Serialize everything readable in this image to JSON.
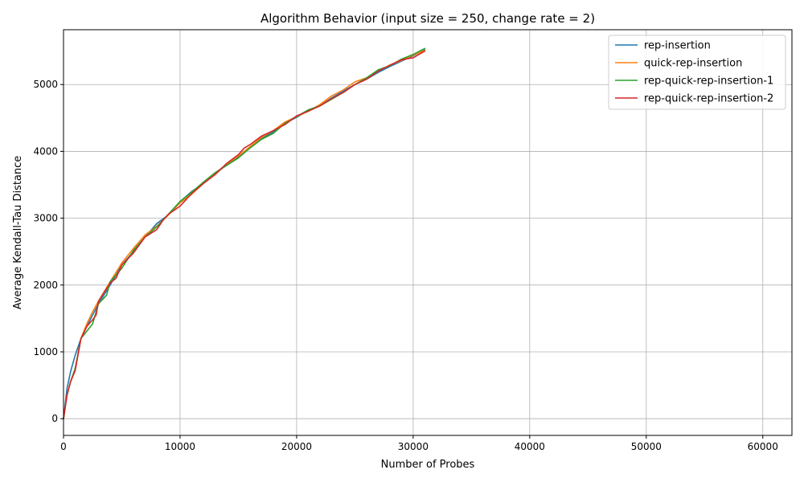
{
  "chart_data": {
    "type": "line",
    "title": "Algorithm Behavior (input size = 250, change rate = 2)",
    "xlabel": "Number of Probes",
    "ylabel": "Average Kendall-Tau Distance",
    "xlim": [
      0,
      62500
    ],
    "ylim": [
      -250,
      5820
    ],
    "xticks": [
      0,
      10000,
      20000,
      30000,
      40000,
      50000,
      60000
    ],
    "yticks": [
      0,
      1000,
      2000,
      3000,
      4000,
      5000
    ],
    "grid": true,
    "legend_position": "top-right",
    "series": [
      {
        "name": "rep-insertion",
        "color": "#1f77b4",
        "x": [
          0,
          300,
          600,
          1000,
          1500,
          2000,
          2500,
          3000,
          4000,
          5000,
          6000,
          7000,
          8000,
          9000,
          10000,
          11000,
          12000,
          13000,
          14000,
          15000,
          16000,
          17000,
          18000,
          19000,
          20000,
          21000,
          22000,
          23000,
          24000,
          25000,
          26000,
          27000,
          28000,
          29000,
          30000,
          31000
        ],
        "y": [
          0,
          450,
          700,
          950,
          1200,
          1380,
          1550,
          1720,
          2000,
          2300,
          2500,
          2720,
          2920,
          3050,
          3250,
          3400,
          3520,
          3660,
          3800,
          3920,
          4060,
          4200,
          4290,
          4420,
          4510,
          4610,
          4680,
          4800,
          4900,
          5000,
          5080,
          5180,
          5270,
          5350,
          5430,
          5520
        ]
      },
      {
        "name": "quick-rep-insertion",
        "color": "#ff7f0e",
        "x": [
          0,
          300,
          600,
          1000,
          1500,
          2000,
          2500,
          3000,
          4000,
          5000,
          6000,
          7000,
          8000,
          9000,
          10000,
          11000,
          12000,
          13000,
          14000,
          15000,
          16000,
          17000,
          18000,
          19000,
          20000,
          21000,
          22000,
          23000,
          24000,
          25000,
          26000,
          27000,
          28000,
          29000,
          30000,
          31000
        ],
        "y": [
          0,
          350,
          550,
          750,
          1200,
          1420,
          1600,
          1760,
          2050,
          2330,
          2550,
          2750,
          2880,
          3050,
          3230,
          3360,
          3520,
          3670,
          3810,
          3930,
          4070,
          4210,
          4310,
          4440,
          4520,
          4600,
          4700,
          4830,
          4920,
          5040,
          5100,
          5200,
          5290,
          5360,
          5440,
          5510
        ]
      },
      {
        "name": "rep-quick-rep-insertion-1",
        "color": "#2ca02c",
        "x": [
          0,
          300,
          600,
          1000,
          1500,
          2000,
          2500,
          3000,
          3700,
          4000,
          5000,
          6000,
          7000,
          8000,
          9000,
          10000,
          11000,
          12000,
          13000,
          14000,
          15000,
          16000,
          17000,
          18000,
          19000,
          20000,
          21000,
          22000,
          23000,
          24000,
          25000,
          26000,
          27000,
          28000,
          29000,
          30000,
          31000
        ],
        "y": [
          0,
          350,
          550,
          750,
          1200,
          1310,
          1420,
          1720,
          1850,
          2050,
          2250,
          2520,
          2720,
          2870,
          3060,
          3250,
          3390,
          3540,
          3680,
          3790,
          3900,
          4050,
          4180,
          4270,
          4420,
          4520,
          4620,
          4680,
          4780,
          4880,
          5000,
          5100,
          5220,
          5280,
          5380,
          5450,
          5540
        ]
      },
      {
        "name": "rep-quick-rep-insertion-2",
        "color": "#d62728",
        "x": [
          0,
          300,
          600,
          1000,
          1500,
          2000,
          2500,
          2800,
          3000,
          4000,
          4500,
          5000,
          6000,
          7000,
          8000,
          8500,
          9000,
          10000,
          11000,
          12000,
          13000,
          14000,
          15000,
          15500,
          16000,
          17000,
          18000,
          19000,
          20000,
          21000,
          22000,
          23000,
          24000,
          25000,
          26000,
          27000,
          28000,
          29000,
          30000,
          31000
        ],
        "y": [
          0,
          350,
          550,
          720,
          1200,
          1380,
          1480,
          1550,
          1760,
          2030,
          2100,
          2300,
          2480,
          2720,
          2830,
          2960,
          3060,
          3180,
          3370,
          3520,
          3650,
          3820,
          3950,
          4050,
          4100,
          4230,
          4310,
          4400,
          4530,
          4600,
          4680,
          4790,
          4880,
          5000,
          5080,
          5200,
          5290,
          5370,
          5400,
          5500
        ]
      }
    ]
  }
}
